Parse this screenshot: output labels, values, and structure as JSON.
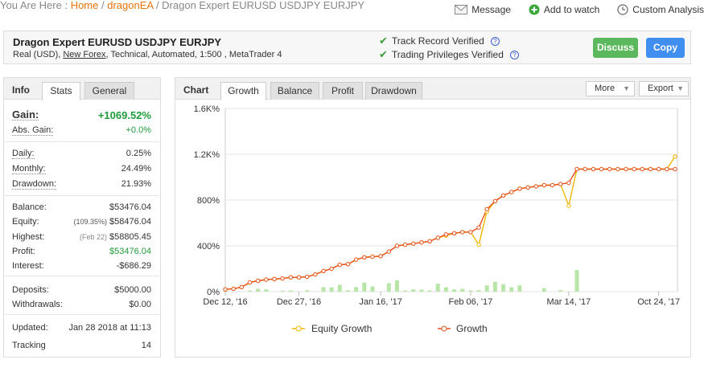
{
  "breadcrumb": {
    "prefix": "You Are Here : ",
    "home": "Home",
    "sep": " / ",
    "user": "dragonEA",
    "current": "Dragon Expert EURUSD USDJPY EURJPY"
  },
  "top_actions": {
    "message": "Message",
    "watch": "Add to watch",
    "custom": "Custom Analysis"
  },
  "header": {
    "title": "Dragon Expert EURUSD USDJPY EURJPY",
    "meta_prefix": "Real (USD), ",
    "meta_broker": "New Forex",
    "meta_suffix": ", Technical, Automated, 1:500 , MetaTrader 4",
    "track_record": "Track Record Verified",
    "trading_privileges": "Trading Privileges Verified",
    "discuss": "Discuss",
    "copy": "Copy"
  },
  "info": {
    "heading": "Info",
    "tabs": [
      "Stats",
      "General"
    ],
    "gain_label": "Gain:",
    "gain_value": "+1069.52%",
    "abs_gain_label": "Abs. Gain:",
    "abs_gain_value": "+0.0%",
    "daily_label": "Daily:",
    "daily_value": "0.25%",
    "monthly_label": "Monthly:",
    "monthly_value": "24.49%",
    "drawdown_label": "Drawdown:",
    "drawdown_value": "21.93%",
    "balance_label": "Balance:",
    "balance_value": "$53476.04",
    "equity_label": "Equity:",
    "equity_sub": "(109.35%)",
    "equity_value": "$58476.04",
    "highest_label": "Highest:",
    "highest_sub": "(Feb 22)",
    "highest_value": "$58805.45",
    "profit_label": "Profit:",
    "profit_value": "$53476.04",
    "interest_label": "Interest:",
    "interest_value": "-$686.29",
    "deposits_label": "Deposits:",
    "deposits_value": "$5000.00",
    "withdrawals_label": "Withdrawals:",
    "withdrawals_value": "$0.00",
    "updated_label": "Updated:",
    "updated_value": "Jan 28 2018 at 11:13",
    "tracking_label": "Tracking",
    "tracking_value": "14"
  },
  "chart_panel": {
    "heading": "Chart",
    "tabs": [
      "Growth",
      "Balance",
      "Profit",
      "Drawdown"
    ],
    "more": "More",
    "export": "Export"
  },
  "colors": {
    "growth": "#e8501e",
    "equity": "#f2b705",
    "bars": "#b8e6a8",
    "accent": "#e8730c"
  },
  "chart_data": {
    "type": "line",
    "ylim": [
      0,
      1600
    ],
    "y_ticks": [
      "1.6K%",
      "1.2K%",
      "800%",
      "400%",
      "0%"
    ],
    "x_ticks": [
      "Dec 12, '16",
      "Dec 27, '16",
      "Jan 16, '17",
      "Feb 06, '17",
      "Mar 14, '17",
      "Oct 24, '17"
    ],
    "grid": true,
    "series": [
      {
        "name": "Equity Growth",
        "values": [
          20,
          25,
          40,
          80,
          95,
          105,
          110,
          115,
          125,
          125,
          130,
          150,
          180,
          200,
          235,
          240,
          280,
          300,
          305,
          310,
          350,
          400,
          410,
          420,
          430,
          440,
          470,
          490,
          510,
          520,
          520,
          410,
          700,
          790,
          840,
          870,
          900,
          910,
          920,
          930,
          930,
          940,
          750,
          1070,
          1070,
          1070,
          1070,
          1070,
          1070,
          1070,
          1070,
          1070,
          1070,
          1070,
          1070,
          1180
        ]
      },
      {
        "name": "Growth",
        "values": [
          20,
          25,
          40,
          80,
          95,
          105,
          110,
          115,
          125,
          125,
          130,
          150,
          180,
          200,
          235,
          240,
          280,
          300,
          305,
          310,
          350,
          400,
          410,
          420,
          430,
          440,
          470,
          500,
          510,
          520,
          520,
          560,
          720,
          790,
          840,
          870,
          900,
          910,
          920,
          930,
          930,
          940,
          950,
          1070,
          1070,
          1070,
          1070,
          1070,
          1070,
          1070,
          1070,
          1070,
          1070,
          1070,
          1070,
          1070
        ]
      }
    ],
    "bars": [
      12,
      0,
      2,
      10,
      25,
      20,
      0,
      8,
      10,
      0,
      12,
      0,
      40,
      38,
      60,
      12,
      40,
      80,
      45,
      0,
      75,
      100,
      10,
      20,
      18,
      10,
      70,
      38,
      20,
      25,
      10,
      12,
      55,
      85,
      65,
      38,
      55,
      0,
      0,
      30,
      0,
      12,
      0,
      190,
      0,
      0,
      0,
      0,
      0,
      0,
      0,
      0,
      0,
      0,
      0,
      0
    ]
  },
  "legend": {
    "equity": "Equity Growth",
    "growth": "Growth"
  }
}
